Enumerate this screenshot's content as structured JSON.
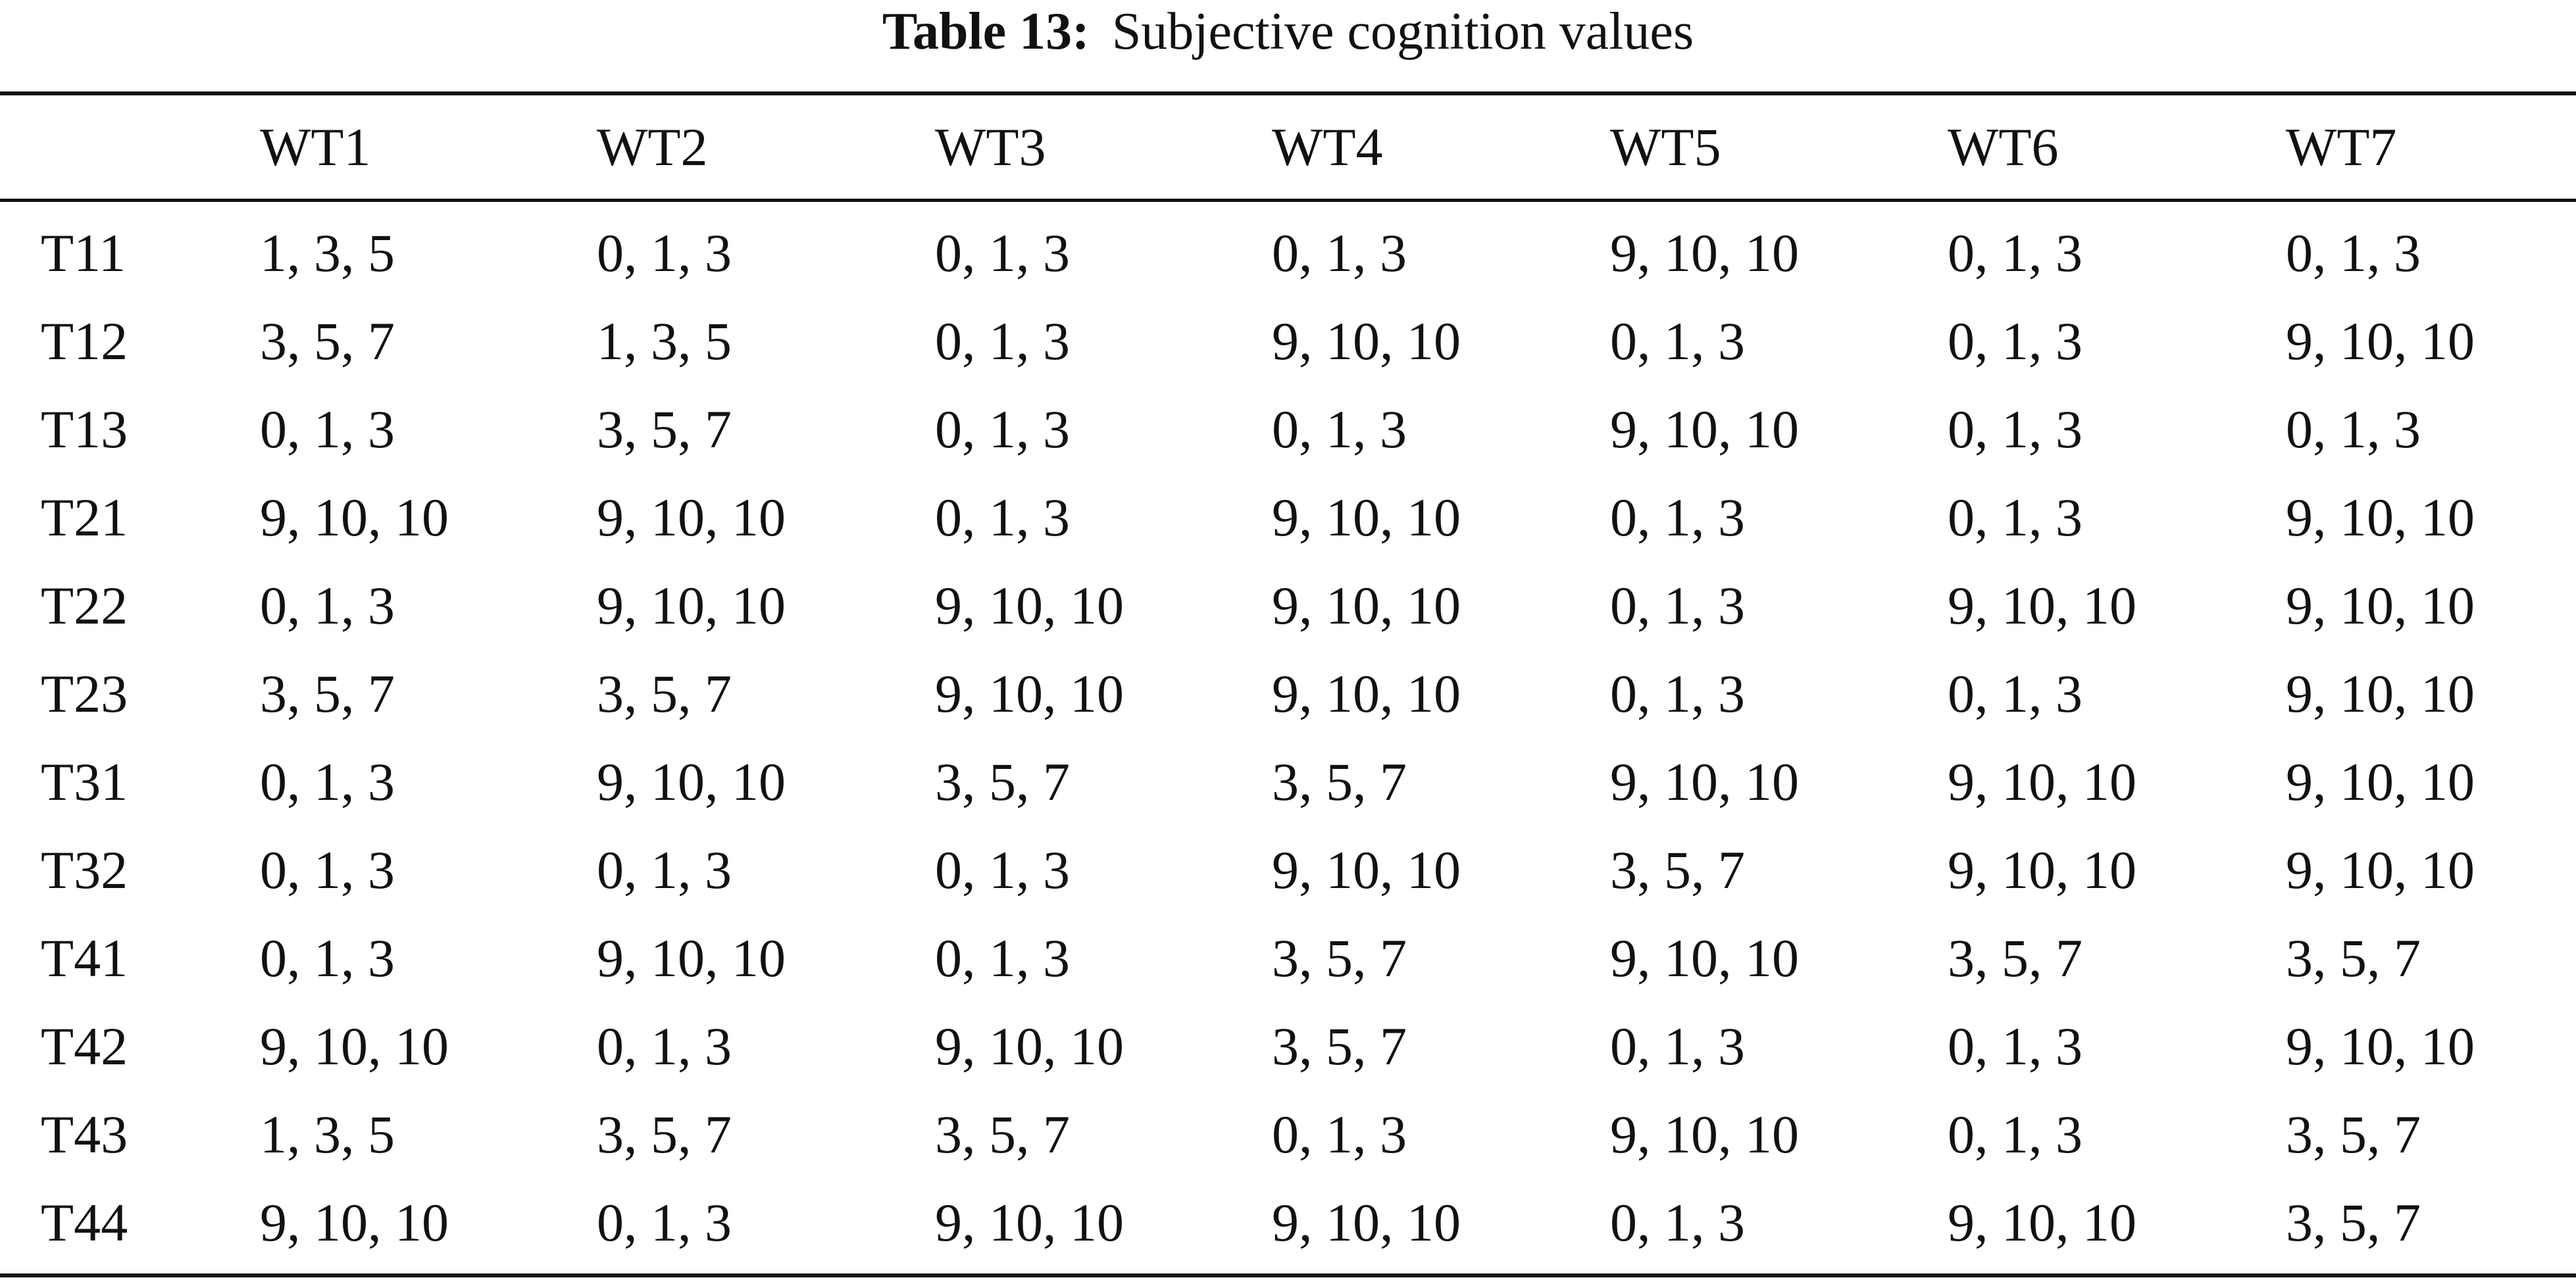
{
  "caption": {
    "label": "Table 13:",
    "text": "Subjective cognition values"
  },
  "table": {
    "columns": [
      "",
      "WT1",
      "WT2",
      "WT3",
      "WT4",
      "WT5",
      "WT6",
      "WT7"
    ],
    "rows": [
      {
        "id": "T11",
        "values": [
          "1, 3, 5",
          "0, 1, 3",
          "0, 1, 3",
          "0, 1, 3",
          "9, 10, 10",
          "0, 1, 3",
          "0, 1, 3"
        ]
      },
      {
        "id": "T12",
        "values": [
          "3, 5, 7",
          "1, 3, 5",
          "0, 1, 3",
          "9, 10, 10",
          "0, 1, 3",
          "0, 1, 3",
          "9, 10, 10"
        ]
      },
      {
        "id": "T13",
        "values": [
          "0, 1, 3",
          "3, 5, 7",
          "0, 1, 3",
          "0, 1, 3",
          "9, 10, 10",
          "0, 1, 3",
          "0, 1, 3"
        ]
      },
      {
        "id": "T21",
        "values": [
          "9, 10, 10",
          "9, 10, 10",
          "0, 1, 3",
          "9, 10, 10",
          "0, 1, 3",
          "0, 1, 3",
          "9, 10, 10"
        ]
      },
      {
        "id": "T22",
        "values": [
          "0, 1, 3",
          "9, 10, 10",
          "9, 10, 10",
          "9, 10, 10",
          "0, 1, 3",
          "9, 10, 10",
          "9, 10, 10"
        ]
      },
      {
        "id": "T23",
        "values": [
          "3, 5, 7",
          "3, 5, 7",
          "9, 10, 10",
          "9, 10, 10",
          "0, 1, 3",
          "0, 1, 3",
          "9, 10, 10"
        ]
      },
      {
        "id": "T31",
        "values": [
          "0, 1, 3",
          "9, 10, 10",
          "3, 5, 7",
          "3, 5, 7",
          "9, 10, 10",
          "9, 10, 10",
          "9, 10, 10"
        ]
      },
      {
        "id": "T32",
        "values": [
          "0, 1, 3",
          "0, 1, 3",
          "0, 1, 3",
          "9, 10, 10",
          "3, 5, 7",
          "9, 10, 10",
          "9, 10, 10"
        ]
      },
      {
        "id": "T41",
        "values": [
          "0, 1, 3",
          "9, 10, 10",
          "0, 1, 3",
          "3, 5, 7",
          "9, 10, 10",
          "3, 5, 7",
          "3, 5, 7"
        ]
      },
      {
        "id": "T42",
        "values": [
          "9, 10, 10",
          "0, 1, 3",
          "9, 10, 10",
          "3, 5, 7",
          "0, 1, 3",
          "0, 1, 3",
          "9, 10, 10"
        ]
      },
      {
        "id": "T43",
        "values": [
          "1, 3, 5",
          "3, 5, 7",
          "3, 5, 7",
          "0, 1, 3",
          "9, 10, 10",
          "0, 1, 3",
          "3, 5, 7"
        ]
      },
      {
        "id": "T44",
        "values": [
          "9, 10, 10",
          "0, 1, 3",
          "9, 10, 10",
          "9, 10, 10",
          "0, 1, 3",
          "9, 10, 10",
          "3, 5, 7"
        ]
      }
    ]
  }
}
